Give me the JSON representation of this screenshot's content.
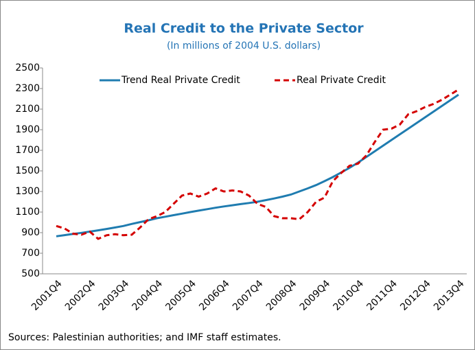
{
  "chart_data": {
    "type": "line",
    "title": "Real Credit to the Private Sector",
    "subtitle": "(In millions of 2004 U.S. dollars)",
    "source": "Sources: Palestinian authorities; and IMF staff estimates.",
    "categories": [
      "2001Q4",
      null,
      null,
      null,
      "2002Q4",
      null,
      null,
      null,
      "2003Q4",
      null,
      null,
      null,
      "2004Q4",
      null,
      null,
      null,
      "2005Q4",
      null,
      null,
      null,
      "2006Q4",
      null,
      null,
      null,
      "2007Q4",
      null,
      null,
      null,
      "2008Q4",
      null,
      null,
      null,
      "2009Q4",
      null,
      null,
      null,
      "2010Q4",
      null,
      null,
      null,
      "2011Q4",
      null,
      null,
      null,
      "2012Q4",
      null,
      null,
      null,
      "2013Q4"
    ],
    "series": [
      {
        "name": "Trend Real Private Credit",
        "color": "#1f7cb0",
        "style": "solid",
        "values": [
          865,
          876,
          887,
          898,
          910,
          923,
          936,
          950,
          965,
          985,
          1003,
          1020,
          1040,
          1055,
          1070,
          1085,
          1100,
          1114,
          1128,
          1142,
          1155,
          1166,
          1177,
          1188,
          1200,
          1216,
          1232,
          1250,
          1270,
          1300,
          1330,
          1362,
          1400,
          1440,
          1485,
          1530,
          1580,
          1635,
          1690,
          1745,
          1800,
          1855,
          1910,
          1965,
          2020,
          2075,
          2130,
          2185,
          2240
        ]
      },
      {
        "name": "Real Private Credit",
        "color": "#d40000",
        "style": "dashed",
        "values": [
          965,
          940,
          890,
          880,
          910,
          840,
          875,
          885,
          875,
          880,
          950,
          1030,
          1060,
          1100,
          1180,
          1260,
          1280,
          1250,
          1280,
          1330,
          1300,
          1310,
          1300,
          1260,
          1180,
          1150,
          1060,
          1040,
          1040,
          1030,
          1100,
          1200,
          1240,
          1400,
          1480,
          1550,
          1570,
          1650,
          1780,
          1900,
          1910,
          1950,
          2050,
          2080,
          2120,
          2150,
          2190,
          2240,
          2290
        ]
      }
    ],
    "ylim": [
      500,
      2500
    ],
    "yticks": [
      500,
      700,
      900,
      1100,
      1300,
      1500,
      1700,
      1900,
      2100,
      2300,
      2500
    ],
    "grid": false,
    "legend": "top"
  }
}
